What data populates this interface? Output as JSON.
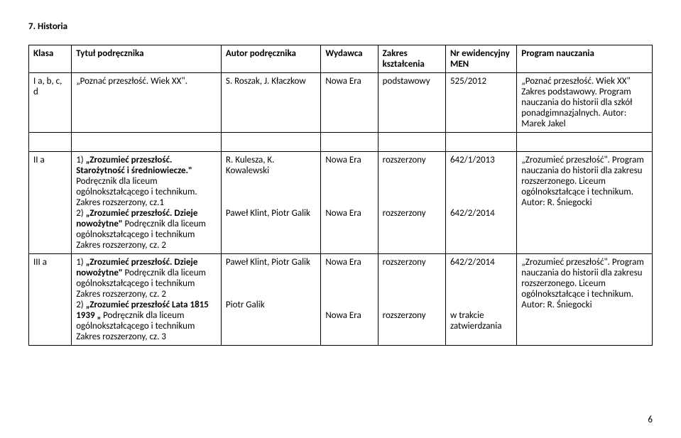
{
  "heading": "7. Historia",
  "headers": {
    "klasa": "Klasa",
    "tytul": "Tytuł podręcznika",
    "autor": "Autor podręcznika",
    "wydawca": "Wydawca",
    "zakres": "Zakres kształcenia",
    "nr": "Nr ewidencyjny MEN",
    "program": "Program nauczania"
  },
  "row1": {
    "klasa": "I a, b, c, d",
    "tytul": "„Poznać przeszłość. Wiek XX\".",
    "autor": "S. Roszak, J. Kłaczkow",
    "wydawca": "Nowa Era",
    "zakres": "podstawowy",
    "nr": "525/2012",
    "program": "„Poznać przeszłość. Wiek XX\" Zakres podstawowy. Program nauczania do historii dla szkół ponadgimnazjalnych. Autor: Marek Jakel"
  },
  "row2": {
    "klasa": "II a",
    "tytul_part1_pre": "1) ",
    "tytul_part1_bold": "„Zrozumieć przeszłość. Starożytność i średniowiecze.\"",
    "tytul_part1_rest": " Podręcznik dla liceum ogólnokształcącego i technikum. Zakres rozszerzony, cz.1",
    "tytul_part2_pre": "2) ",
    "tytul_part2_bold": "„Zrozumieć przeszłość. Dzieje nowożytne\"",
    "tytul_part2_rest": " Podręcznik dla liceum ogólnokształcącego i technikum Zakres rozszerzony, cz. 2",
    "autor1": "R. Kulesza, K. Kowalewski",
    "autor2": "Paweł Klint, Piotr Galik",
    "wydawca1": "Nowa Era",
    "wydawca2": "Nowa Era",
    "zakres1": "rozszerzony",
    "zakres2": "rozszerzony",
    "nr1": "642/1/2013",
    "nr2": "642/2/2014",
    "program": "„Zrozumieć przeszłość\". Program nauczania do historii dla zakresu rozszerzonego. Liceum ogólnokształcące i technikum. Autor: R. Śniegocki"
  },
  "row3": {
    "klasa": "III a",
    "tytul_part1_pre": "1) ",
    "tytul_part1_bold": "„Zrozumieć przeszłość. Dzieje nowożytne\"",
    "tytul_part1_rest": " Podręcznik dla liceum ogólnokształcącego i technikum Zakres rozszerzony, cz. 2",
    "tytul_part2_pre": "2) ",
    "tytul_part2_bold": "„Zrozumieć przeszłość Lata 1815 1939 „",
    "tytul_part2_rest": " Podręcznik dla liceum ogólnokształcącego i technikum Zakres rozszerzony, cz. 3",
    "autor1": "Paweł Klint, Piotr Galik",
    "autor2": "Piotr Galik",
    "wydawca1": "Nowa Era",
    "wydawca2": "Nowa Era",
    "zakres1": "rozszerzony",
    "zakres2": "rozszerzony",
    "nr1": "642/2/2014",
    "nr2": "w trakcie zatwierdzania",
    "program": "„Zrozumieć przeszłość\". Program nauczania do historii dla zakresu rozszerzonego. Liceum ogólnokształcące i technikum. Autor: R. Śniegocki"
  },
  "pageNumber": "6"
}
